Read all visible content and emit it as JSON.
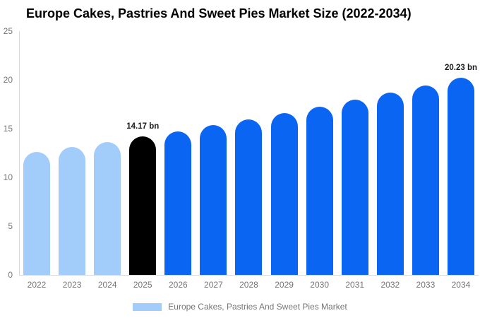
{
  "title": "Europe Cakes, Pastries And Sweet Pies Market Size (2022-2034)",
  "legend": {
    "label": "Europe Cakes, Pastries And Sweet Pies Market",
    "swatch_color": "#a2cdfa"
  },
  "colors": {
    "historical_bar": "#a2cdfa",
    "base_year_bar": "#000000",
    "forecast_bar": "#0a66f2",
    "axis_line": "#d9d9d9",
    "tick_text": "#757575",
    "annotation_text": "#1a1a1a",
    "title_text": "#000000",
    "background": "#ffffff"
  },
  "chart_data": {
    "type": "bar",
    "title": "Europe Cakes, Pastries And Sweet Pies Market Size (2022-2034)",
    "categories": [
      "2022",
      "2023",
      "2024",
      "2025",
      "2026",
      "2027",
      "2028",
      "2029",
      "2030",
      "2031",
      "2032",
      "2033",
      "2034"
    ],
    "values": [
      12.58,
      13.09,
      13.62,
      14.17,
      14.74,
      15.34,
      15.96,
      16.6,
      17.27,
      17.97,
      18.69,
      19.45,
      20.23
    ],
    "bar_colors": [
      "#a2cdfa",
      "#a2cdfa",
      "#a2cdfa",
      "#000000",
      "#0a66f2",
      "#0a66f2",
      "#0a66f2",
      "#0a66f2",
      "#0a66f2",
      "#0a66f2",
      "#0a66f2",
      "#0a66f2",
      "#0a66f2"
    ],
    "annotations": [
      {
        "index": 3,
        "text": "14.17 bn"
      },
      {
        "index": 12,
        "text": "20.23 bn"
      }
    ],
    "xlabel": "",
    "ylabel": "",
    "ylim": [
      0,
      25
    ],
    "yticks": [
      0,
      5,
      10,
      15,
      20,
      25
    ],
    "grid": false,
    "legend_position": "bottom",
    "unit": "bn"
  }
}
